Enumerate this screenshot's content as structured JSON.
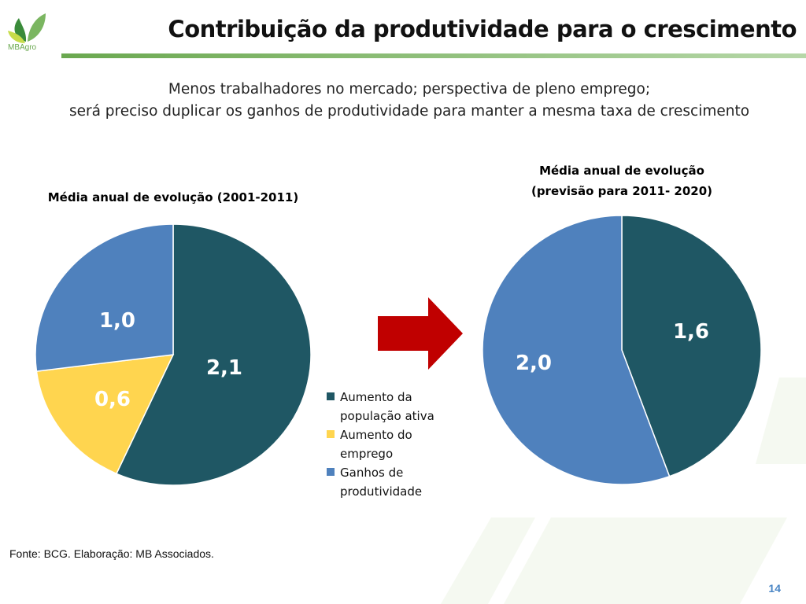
{
  "header": {
    "logo_text": "MBAgro",
    "title": "Contribuição da produtividade para o crescimento"
  },
  "subtitle": {
    "line1": "Menos trabalhadores no mercado; perspectiva de pleno emprego;",
    "line2": "será preciso duplicar os ganhos de produtividade para manter a mesma taxa de crescimento"
  },
  "legend": [
    {
      "label": "Aumento da população ativa",
      "color": "#1f5764"
    },
    {
      "label": "Aumento do emprego",
      "color": "#ffd54f"
    },
    {
      "label": "Ganhos de produtividade",
      "color": "#4f81bd"
    }
  ],
  "chart_data": [
    {
      "type": "pie",
      "title": "Média anual de evolução (2001-2011)",
      "categories": [
        "Aumento da população ativa",
        "Aumento do emprego",
        "Ganhos de produtividade"
      ],
      "values": [
        2.1,
        0.6,
        1.0
      ],
      "value_labels": [
        "2,1",
        "0,6",
        "1,0"
      ],
      "colors": [
        "#1f5764",
        "#ffd54f",
        "#4f81bd"
      ],
      "label_colors": [
        "#ffffff",
        "#ffffff",
        "#ffffff"
      ],
      "start_angle_deg": 0,
      "legend_position": "right"
    },
    {
      "type": "pie",
      "title_lines": [
        "Média anual de evolução",
        "(previsão para 2011- 2020)"
      ],
      "categories": [
        "Aumento da população ativa",
        "Ganhos de produtividade"
      ],
      "values": [
        1.6,
        2.0
      ],
      "value_labels": [
        "1,6",
        "2,0"
      ],
      "colors": [
        "#1f5764",
        "#4f81bd"
      ],
      "label_colors": [
        "#ffffff",
        "#ffffff"
      ],
      "start_angle_deg": 0
    }
  ],
  "footer": {
    "source": "Fonte: BCG. Elaboração: MB Associados.",
    "page_number": "14"
  }
}
